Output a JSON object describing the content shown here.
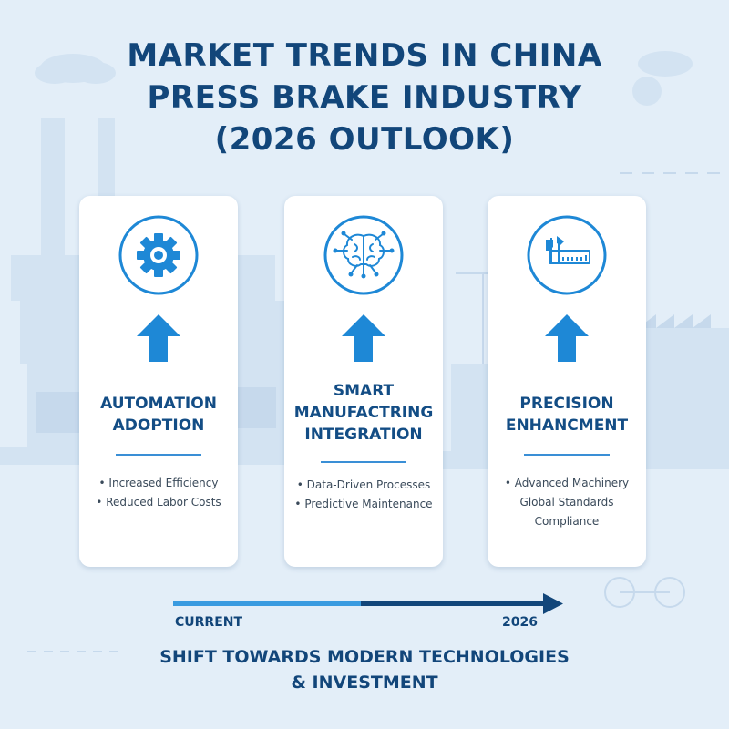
{
  "title": {
    "line1": "MARKET TRENDS IN CHINA",
    "line2": "PRESS BRAKE INDUSTRY",
    "line3": "(2026 OUTLOOK)"
  },
  "colors": {
    "background": "#e3eef8",
    "primary": "#12467a",
    "accent": "#1e88d6"
  },
  "cards": [
    {
      "icon": "gear-icon",
      "title_line1": "AUTOMATION",
      "title_line2": "ADOPTION",
      "bullets": [
        "• Increased Efficiency",
        "• Reduced Labor Costs"
      ]
    },
    {
      "icon": "brain-circuit-icon",
      "title_line1": "SMART",
      "title_line2": "MANUFACTRING",
      "title_line3": "INTEGRATION",
      "bullets": [
        "• Data-Driven Processes",
        "• Predictive Maintenance"
      ]
    },
    {
      "icon": "caliper-icon",
      "title_line1": "PRECISION",
      "title_line2": "ENHANCMENT",
      "bullets": [
        "• Advanced Machinery",
        "Global Standards",
        "Compliance"
      ]
    }
  ],
  "timeline": {
    "start_label": "CURRENT",
    "end_label": "2026"
  },
  "footer": {
    "line1": "SHIFT TOWARDS MODERN TECHNOLOGIES",
    "line2": "& INVESTMENT"
  }
}
